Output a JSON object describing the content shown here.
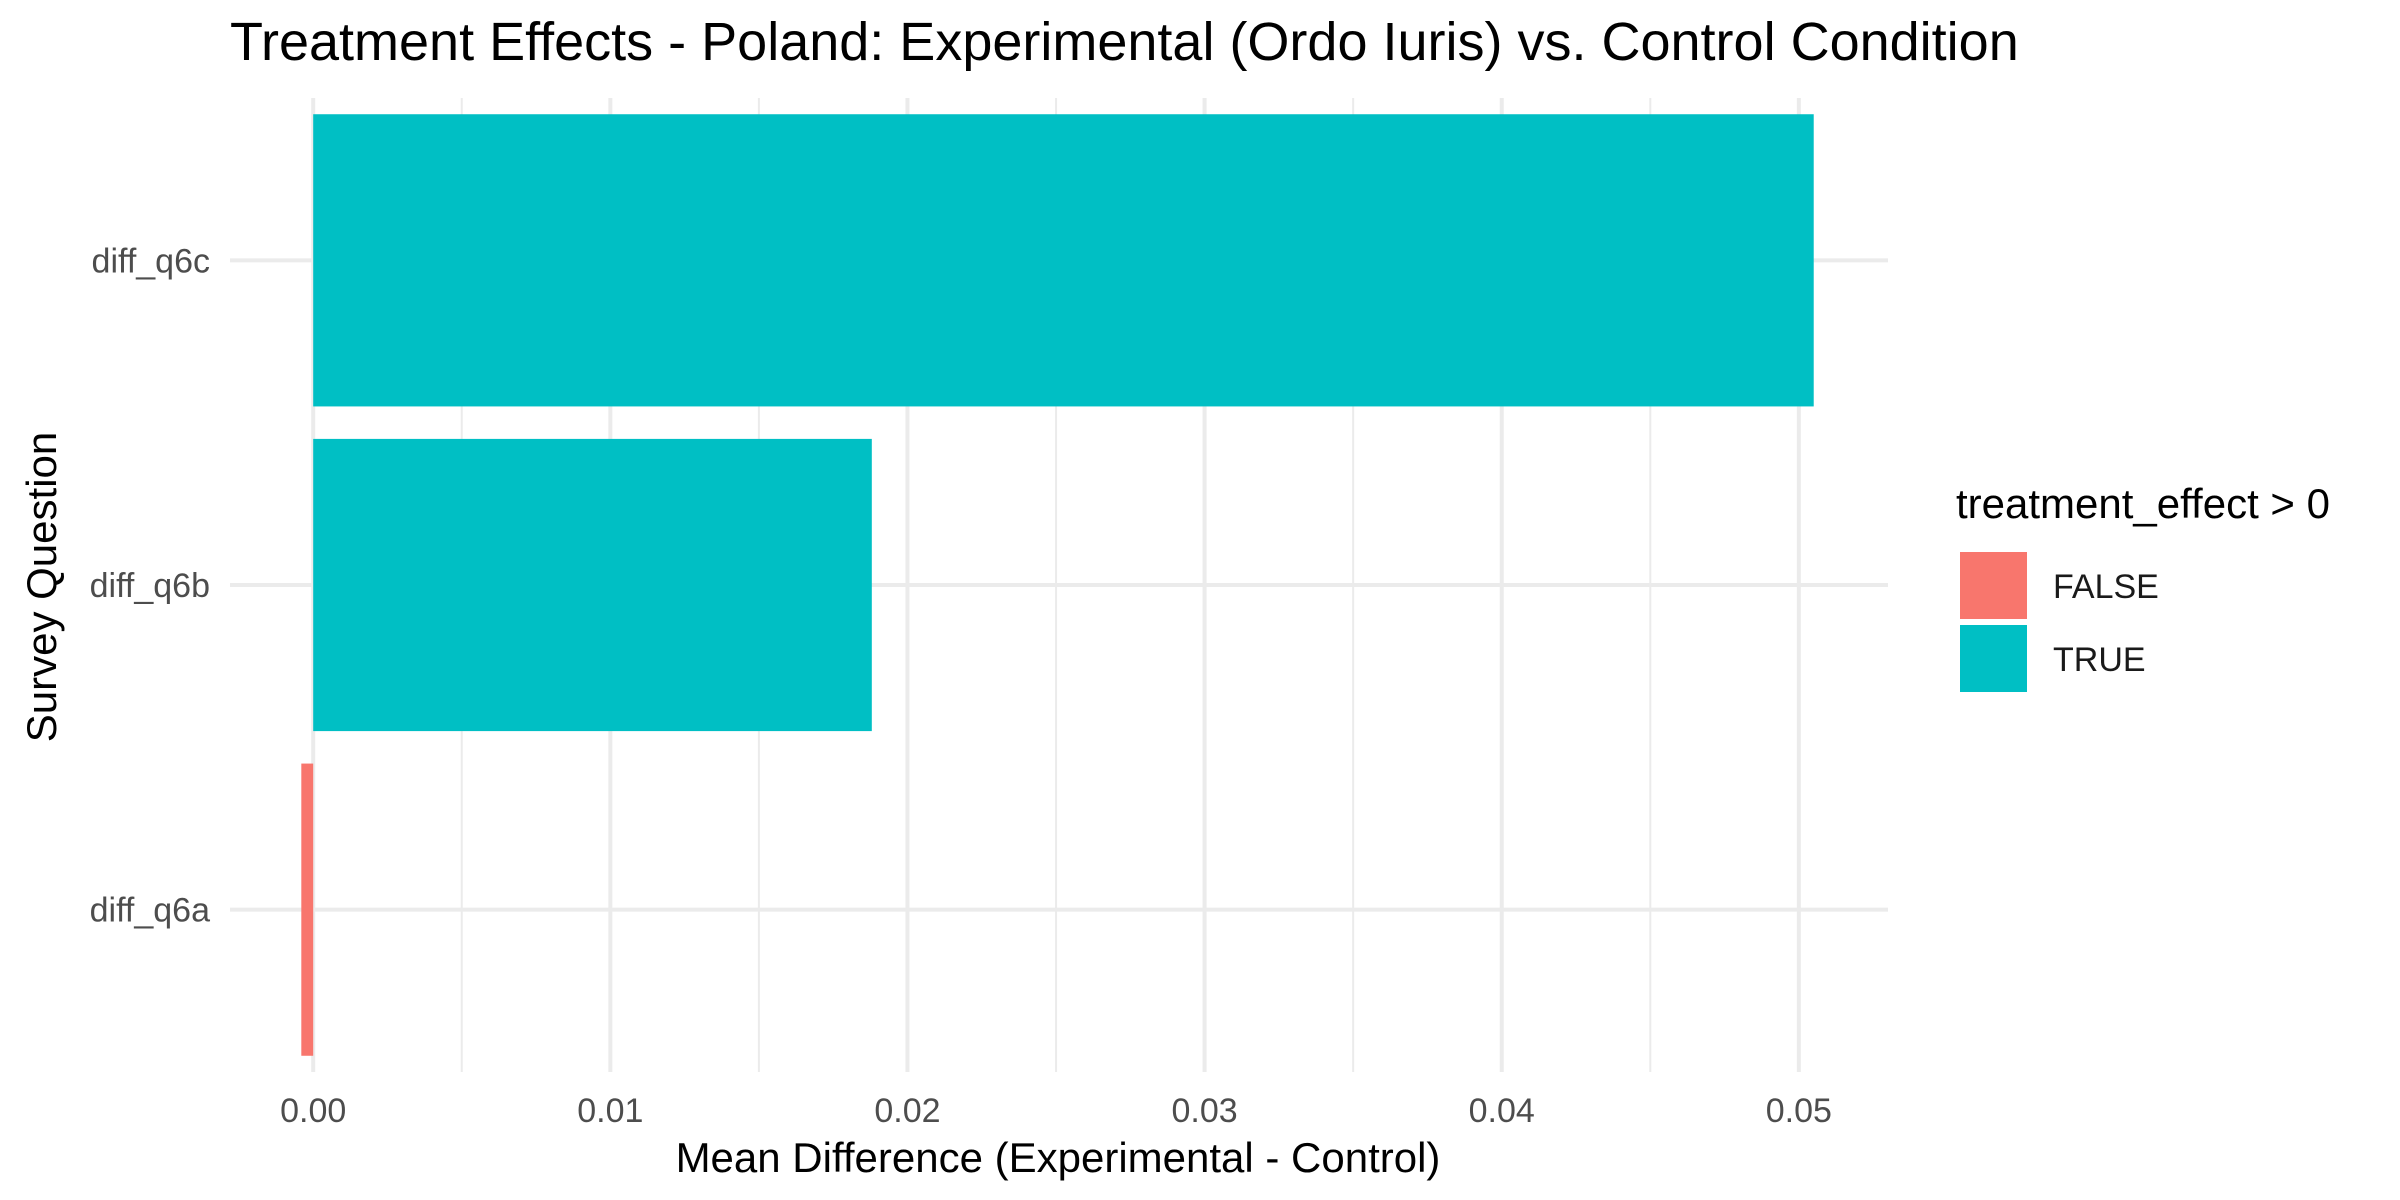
{
  "chart_data": {
    "type": "bar",
    "orientation": "horizontal",
    "title": "Treatment Effects - Poland: Experimental (Ordo Iuris) vs. Control Condition",
    "xlabel": "Mean Difference (Experimental - Control)",
    "ylabel": "Survey Question",
    "categories": [
      "diff_q6a",
      "diff_q6b",
      "diff_q6c"
    ],
    "values": [
      -0.0004,
      0.0188,
      0.0505
    ],
    "fill_group": [
      "FALSE",
      "TRUE",
      "TRUE"
    ],
    "xlim": [
      -0.0028,
      0.053
    ],
    "x_ticks": [
      0.0,
      0.01,
      0.02,
      0.03,
      0.04,
      0.05
    ],
    "x_tick_labels": [
      "0.00",
      "0.01",
      "0.02",
      "0.03",
      "0.04",
      "0.05"
    ],
    "x_minor_ticks": [
      0.005,
      0.015,
      0.025,
      0.035,
      0.045
    ],
    "grid": true,
    "legend": {
      "title": "treatment_effect > 0",
      "position": "right",
      "items": [
        {
          "label": "FALSE",
          "color": "#F8766D"
        },
        {
          "label": "TRUE",
          "color": "#00BFC4"
        }
      ]
    }
  }
}
